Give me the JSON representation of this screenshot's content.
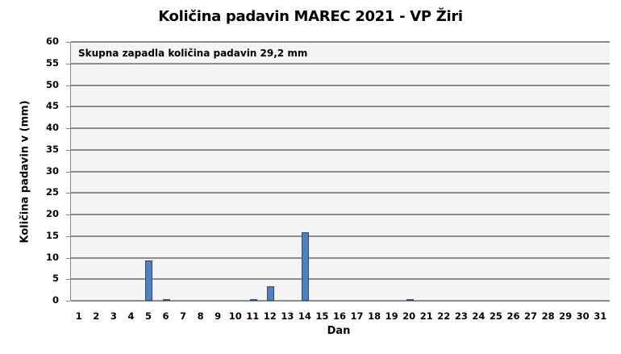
{
  "chart_data": {
    "type": "bar",
    "title": "Količina padavin MAREC 2021 - VP Žiri",
    "xlabel": "Dan",
    "ylabel": "Količina padavin v  (mm)",
    "annotation": "Skupna zapadla količina padavin 29,2 mm",
    "ylim": [
      0,
      60
    ],
    "yticks": [
      0,
      5,
      10,
      15,
      20,
      25,
      30,
      35,
      40,
      45,
      50,
      55,
      60
    ],
    "grid": true,
    "legend": null,
    "categories": [
      "1",
      "2",
      "3",
      "4",
      "5",
      "6",
      "7",
      "8",
      "9",
      "10",
      "11",
      "12",
      "13",
      "14",
      "15",
      "16",
      "17",
      "18",
      "19",
      "20",
      "21",
      "22",
      "23",
      "24",
      "25",
      "26",
      "27",
      "28",
      "29",
      "30",
      "31"
    ],
    "series": [
      {
        "name": "Količina padavin",
        "color": "#4f81bd",
        "values": [
          0,
          0,
          0,
          0,
          9.3,
          0.2,
          0,
          0,
          0,
          0,
          0.2,
          3.4,
          0,
          15.9,
          0,
          0,
          0,
          0,
          0,
          0.2,
          0,
          0,
          0,
          0,
          0,
          0,
          0,
          0,
          0,
          0,
          0
        ]
      }
    ]
  }
}
